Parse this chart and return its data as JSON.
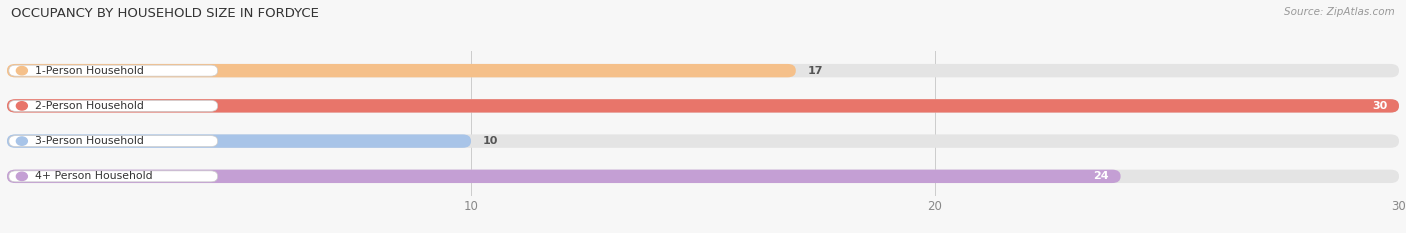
{
  "title": "OCCUPANCY BY HOUSEHOLD SIZE IN FORDYCE",
  "source": "Source: ZipAtlas.com",
  "categories": [
    "1-Person Household",
    "2-Person Household",
    "3-Person Household",
    "4+ Person Household"
  ],
  "values": [
    17,
    30,
    10,
    24
  ],
  "bar_colors": [
    "#f5c08a",
    "#e8756a",
    "#a8c4e8",
    "#c49fd4"
  ],
  "background_color": "#f7f7f7",
  "bar_bg_color": "#e4e4e4",
  "xlim": [
    0,
    30
  ],
  "xticks": [
    10,
    20,
    30
  ],
  "bar_height": 0.38,
  "value_label_inside": [
    false,
    true,
    false,
    true
  ],
  "figsize": [
    14.06,
    2.33
  ]
}
